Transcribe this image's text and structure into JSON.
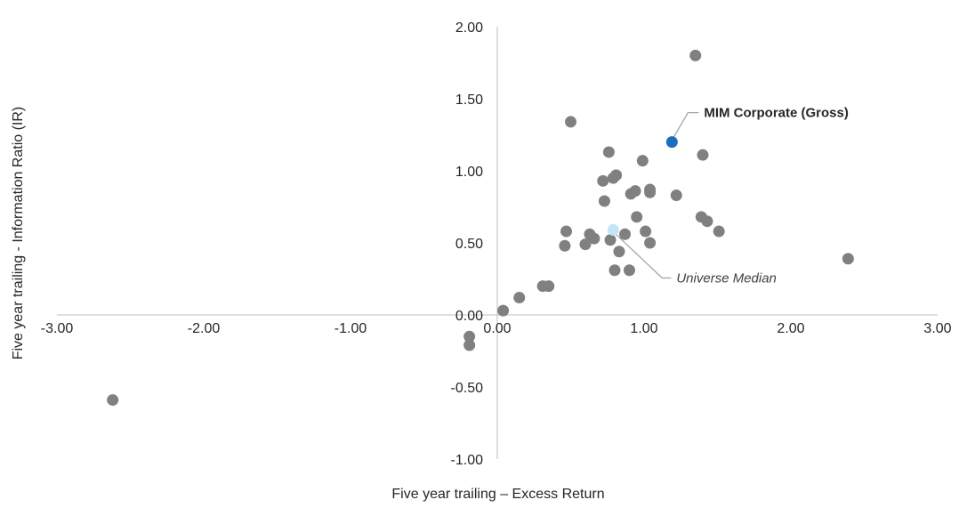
{
  "chart_data": {
    "type": "scatter",
    "title": "",
    "xlabel": "Five year trailing – Excess Return",
    "ylabel": "Five year trailing - Information Ratio (IR)",
    "xlim": [
      -3,
      3
    ],
    "ylim": [
      -1,
      2
    ],
    "x_ticks": [
      "-3.00",
      "-2.00",
      "-1.00",
      "0.00",
      "1.00",
      "2.00",
      "3.00"
    ],
    "y_ticks": [
      "-1.00",
      "-0.50",
      "0.00",
      "0.50",
      "1.00",
      "1.50",
      "2.00"
    ],
    "grid": false,
    "legend": "none",
    "colors": {
      "universe": "#808080",
      "highlight": "#1a6fbd",
      "median": "#c5e4f7",
      "axis": "#bfbfbf",
      "leader": "#a6a6a6"
    },
    "series": [
      {
        "points": [
          [
            -2.62,
            -0.59
          ],
          [
            -0.19,
            -0.15
          ],
          [
            -0.19,
            -0.21
          ],
          [
            0.04,
            0.03
          ],
          [
            0.15,
            0.12
          ],
          [
            0.31,
            0.2
          ],
          [
            0.35,
            0.2
          ],
          [
            0.46,
            0.48
          ],
          [
            0.47,
            0.58
          ],
          [
            0.5,
            1.34
          ],
          [
            0.6,
            0.49
          ],
          [
            0.63,
            0.56
          ],
          [
            0.66,
            0.53
          ],
          [
            0.72,
            0.93
          ],
          [
            0.73,
            0.79
          ],
          [
            0.76,
            1.13
          ],
          [
            0.77,
            0.52
          ],
          [
            0.79,
            0.95
          ],
          [
            0.8,
            0.31
          ],
          [
            0.81,
            0.97
          ],
          [
            0.83,
            0.44
          ],
          [
            0.87,
            0.56
          ],
          [
            0.9,
            0.31
          ],
          [
            0.91,
            0.84
          ],
          [
            0.94,
            0.86
          ],
          [
            0.95,
            0.68
          ],
          [
            0.99,
            1.07
          ],
          [
            1.01,
            0.58
          ],
          [
            1.04,
            0.85
          ],
          [
            1.04,
            0.87
          ],
          [
            1.04,
            0.5
          ],
          [
            1.22,
            0.83
          ],
          [
            1.35,
            1.8
          ],
          [
            1.39,
            0.68
          ],
          [
            1.4,
            1.11
          ],
          [
            1.43,
            0.65
          ],
          [
            1.51,
            0.58
          ],
          [
            2.39,
            0.39
          ]
        ]
      },
      {
        "name": "MIM Corporate (Gross)",
        "points": [
          [
            1.19,
            1.2
          ]
        ]
      },
      {
        "name": "Universe Median",
        "points": [
          [
            0.79,
            0.59
          ]
        ]
      }
    ],
    "annotations": [
      {
        "text": "MIM Corporate (Gross)",
        "x": 1.19,
        "y": 1.2
      },
      {
        "text": "Universe Median",
        "x": 0.79,
        "y": 0.59
      }
    ]
  }
}
